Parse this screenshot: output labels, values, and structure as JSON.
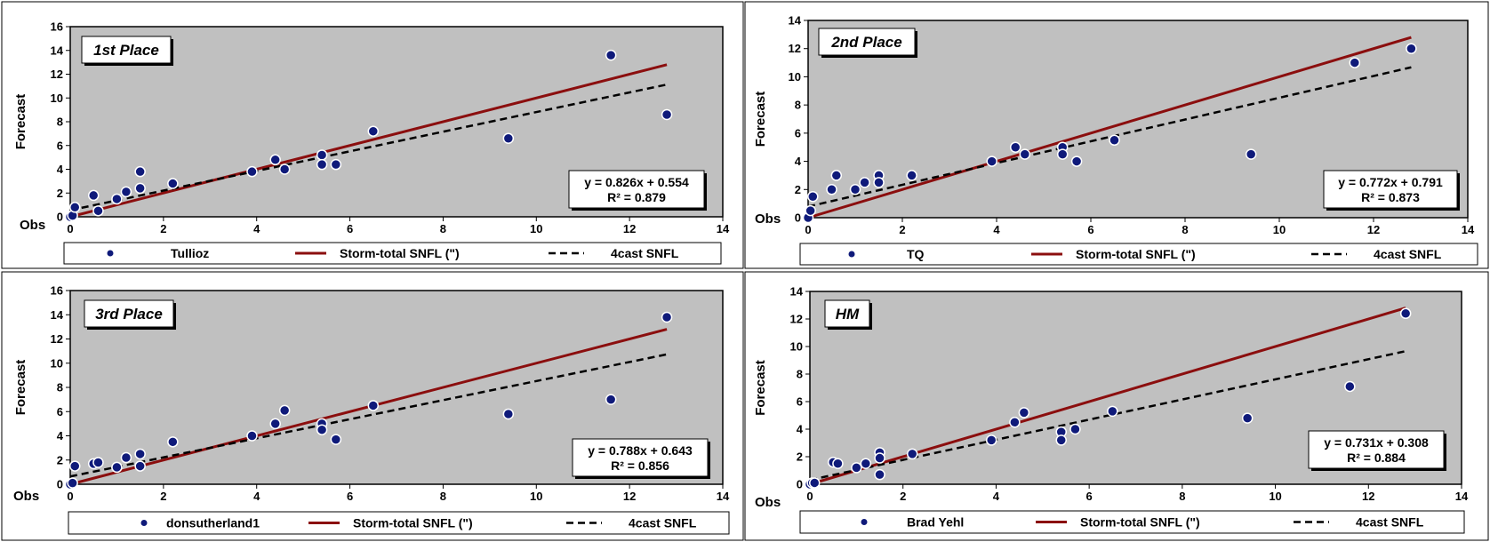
{
  "styles": {
    "plot_bg": "#c0c0c0",
    "marker_color": "#0f1a7a",
    "line_color": "#8b0e0e",
    "trend_color": "#000000"
  },
  "chart_data": [
    {
      "type": "scatter",
      "place_label": "1st Place",
      "xlabel": "Obs",
      "ylabel": "Forecast",
      "xlim": [
        0,
        14
      ],
      "ylim": [
        0,
        16
      ],
      "xticks": [
        0,
        2,
        4,
        6,
        8,
        10,
        12,
        14
      ],
      "yticks": [
        0,
        2,
        4,
        6,
        8,
        10,
        12,
        14,
        16
      ],
      "grid": false,
      "legend_position": "bottom",
      "equation": "y = 0.826x + 0.554",
      "r2": "R² = 0.879",
      "series": [
        {
          "name": "Tullioz",
          "kind": "scatter",
          "x": [
            0,
            0.05,
            0.1,
            0.5,
            0.6,
            1.0,
            1.2,
            1.5,
            1.5,
            2.2,
            3.9,
            4.4,
            4.6,
            5.4,
            5.4,
            5.7,
            6.5,
            9.4,
            11.6,
            12.8
          ],
          "y": [
            0,
            0.1,
            0.8,
            1.8,
            0.5,
            1.5,
            2.1,
            2.4,
            3.8,
            2.8,
            3.8,
            4.8,
            4.0,
            5.2,
            4.4,
            4.4,
            7.2,
            6.6,
            13.6,
            8.6
          ]
        },
        {
          "name": "Storm-total SNFL (\")",
          "kind": "line",
          "x": [
            0,
            12.8
          ],
          "y": [
            0,
            12.8
          ]
        },
        {
          "name": "4cast SNFL",
          "kind": "trend",
          "x": [
            0,
            12.8
          ],
          "y": [
            0.554,
            11.127
          ]
        }
      ]
    },
    {
      "type": "scatter",
      "place_label": "2nd Place",
      "xlabel": "Obs",
      "ylabel": "Forecast",
      "xlim": [
        0,
        14
      ],
      "ylim": [
        0,
        14
      ],
      "xticks": [
        0,
        2,
        4,
        6,
        8,
        10,
        12,
        14
      ],
      "yticks": [
        0,
        2,
        4,
        6,
        8,
        10,
        12,
        14
      ],
      "grid": false,
      "legend_position": "bottom",
      "equation": "y = 0.772x + 0.791",
      "r2": "R² = 0.873",
      "series": [
        {
          "name": "TQ",
          "kind": "scatter",
          "x": [
            0,
            0.05,
            0.1,
            0.5,
            0.6,
            1.0,
            1.2,
            1.5,
            1.5,
            2.2,
            3.9,
            4.4,
            4.6,
            5.4,
            5.4,
            5.7,
            6.5,
            9.4,
            11.6,
            12.8
          ],
          "y": [
            0,
            0.5,
            1.5,
            2.0,
            3.0,
            2.0,
            2.5,
            3.0,
            2.5,
            3.0,
            4.0,
            5.0,
            4.5,
            5.0,
            4.5,
            4.0,
            5.5,
            4.5,
            11.0,
            12.0
          ]
        },
        {
          "name": "Storm-total SNFL (\")",
          "kind": "line",
          "x": [
            0,
            12.8
          ],
          "y": [
            0,
            12.8
          ]
        },
        {
          "name": "4cast SNFL",
          "kind": "trend",
          "x": [
            0,
            12.8
          ],
          "y": [
            0.791,
            10.673
          ]
        }
      ]
    },
    {
      "type": "scatter",
      "place_label": "3rd Place",
      "xlabel": "Obs",
      "ylabel": "Forecast",
      "xlim": [
        0,
        14
      ],
      "ylim": [
        0,
        16
      ],
      "xticks": [
        0,
        2,
        4,
        6,
        8,
        10,
        12,
        14
      ],
      "yticks": [
        0,
        2,
        4,
        6,
        8,
        10,
        12,
        14,
        16
      ],
      "grid": false,
      "legend_position": "bottom",
      "equation": "y = 0.788x + 0.643",
      "r2": "R² = 0.856",
      "series": [
        {
          "name": "donsutherland1",
          "kind": "scatter",
          "x": [
            0,
            0.05,
            0.1,
            0.5,
            0.6,
            1.0,
            1.2,
            1.5,
            1.5,
            2.2,
            3.9,
            4.4,
            4.6,
            5.4,
            5.4,
            5.7,
            6.5,
            9.4,
            11.6,
            12.8
          ],
          "y": [
            0,
            0.1,
            1.5,
            1.7,
            1.8,
            1.4,
            2.2,
            2.5,
            1.5,
            3.5,
            4.0,
            5.0,
            6.1,
            5.0,
            4.5,
            3.7,
            6.5,
            5.8,
            7.0,
            13.8
          ]
        },
        {
          "name": "Storm-total SNFL (\")",
          "kind": "line",
          "x": [
            0,
            12.8
          ],
          "y": [
            0,
            12.8
          ]
        },
        {
          "name": "4cast SNFL",
          "kind": "trend",
          "x": [
            0,
            12.8
          ],
          "y": [
            0.643,
            10.729
          ]
        }
      ]
    },
    {
      "type": "scatter",
      "place_label": "HM",
      "xlabel": "Obs",
      "ylabel": "Forecast",
      "xlim": [
        0,
        14
      ],
      "ylim": [
        0,
        14
      ],
      "xticks": [
        0,
        2,
        4,
        6,
        8,
        10,
        12,
        14
      ],
      "yticks": [
        0,
        2,
        4,
        6,
        8,
        10,
        12,
        14
      ],
      "grid": false,
      "legend_position": "bottom",
      "equation": "y = 0.731x + 0.308",
      "r2": "R² = 0.884",
      "series": [
        {
          "name": "Brad Yehl",
          "kind": "scatter",
          "x": [
            0,
            0.05,
            0.1,
            0.5,
            0.6,
            1.0,
            1.2,
            1.5,
            1.5,
            1.5,
            2.2,
            3.9,
            4.4,
            4.6,
            5.4,
            5.4,
            5.7,
            6.5,
            9.4,
            11.6,
            12.8
          ],
          "y": [
            0,
            0.1,
            0.1,
            1.6,
            1.5,
            1.2,
            1.5,
            2.3,
            1.9,
            0.7,
            2.2,
            3.2,
            4.5,
            5.2,
            3.8,
            3.2,
            4.0,
            5.3,
            4.8,
            7.1,
            12.4
          ]
        },
        {
          "name": "Storm-total SNFL (\")",
          "kind": "line",
          "x": [
            0,
            12.8
          ],
          "y": [
            0,
            12.8
          ]
        },
        {
          "name": "4cast SNFL",
          "kind": "trend",
          "x": [
            0,
            12.8
          ],
          "y": [
            0.308,
            9.665
          ]
        }
      ]
    }
  ]
}
